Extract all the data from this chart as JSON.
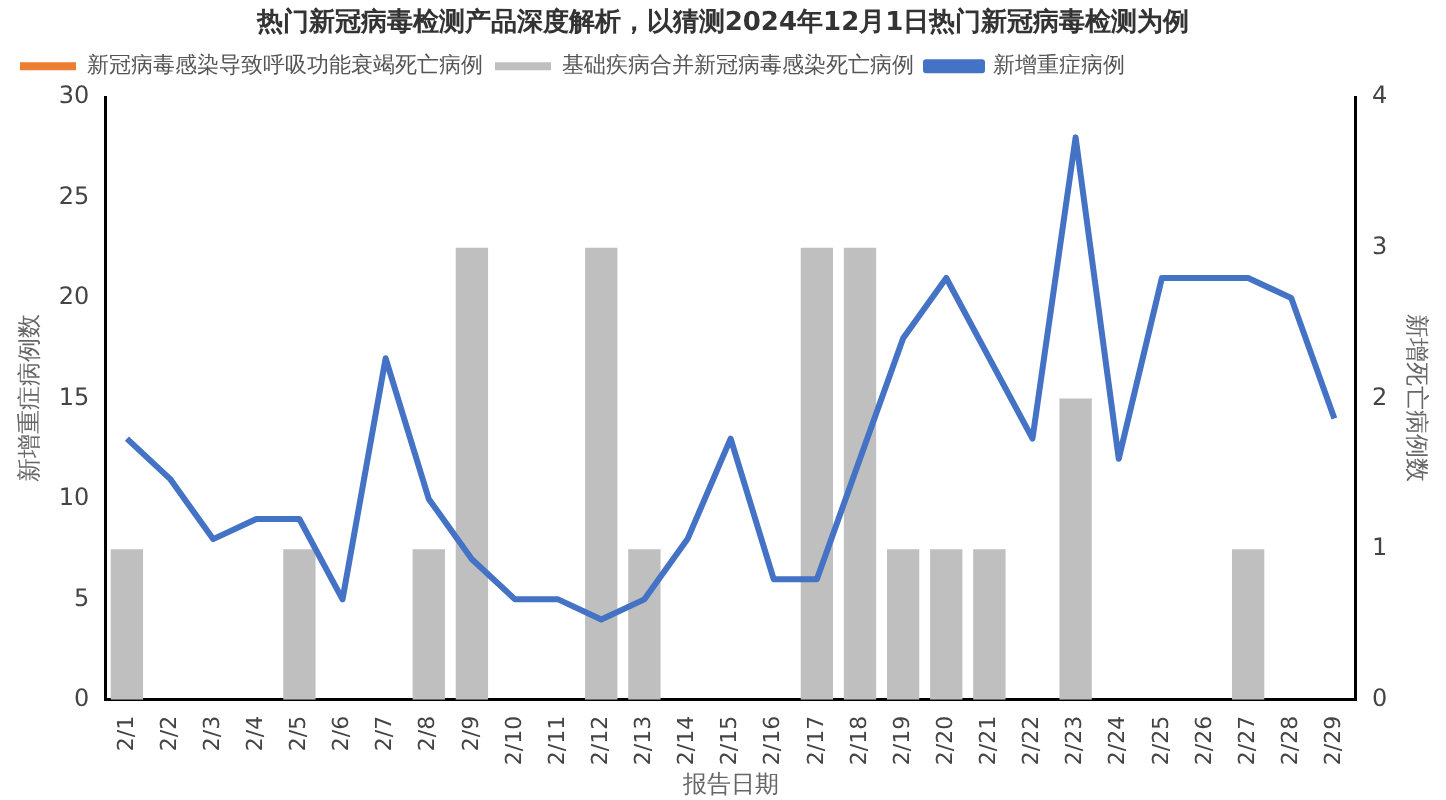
{
  "chart_data": {
    "type": "bar",
    "title": "热门新冠病毒检测产品深度解析，以猜测2024年12月1日热门新冠病毒检测为例",
    "xlabel": "报告日期",
    "ylabel": "新增重症病例数",
    "y2label": "新增死亡病例数",
    "categories": [
      "2/1",
      "2/2",
      "2/3",
      "2/4",
      "2/5",
      "2/6",
      "2/7",
      "2/8",
      "2/9",
      "2/10",
      "2/11",
      "2/12",
      "2/13",
      "2/14",
      "2/15",
      "2/16",
      "2/17",
      "2/18",
      "2/19",
      "2/20",
      "2/21",
      "2/22",
      "2/23",
      "2/24",
      "2/25",
      "2/26",
      "2/27",
      "2/28",
      "2/29"
    ],
    "series": [
      {
        "name": "新冠病毒感染导致呼吸功能衰竭死亡病例",
        "axis": "y2",
        "color": "#ed7d31",
        "values": [
          0,
          0,
          0,
          0,
          0,
          0,
          0,
          0,
          0,
          0,
          0,
          0,
          0,
          0,
          0,
          0,
          0,
          0,
          0,
          0,
          0,
          0,
          0,
          0,
          0,
          0,
          0,
          0,
          0
        ]
      },
      {
        "name": "基础疾病合并新冠病毒感染死亡病例",
        "axis": "y2",
        "color": "#bfbfbf",
        "values": [
          1,
          0,
          0,
          0,
          1,
          0,
          0,
          1,
          3,
          0,
          0,
          3,
          1,
          0,
          0,
          0,
          3,
          3,
          1,
          1,
          1,
          0,
          2,
          0,
          0,
          0,
          1,
          0,
          0
        ]
      },
      {
        "name": "新增重症病例",
        "type": "line",
        "axis": "y",
        "color": "#4472c4",
        "values": [
          13,
          11,
          8,
          9,
          9,
          5,
          17,
          10,
          7,
          5,
          5,
          4,
          5,
          8,
          13,
          6,
          6,
          12,
          18,
          21,
          17,
          13,
          28,
          12,
          21,
          21,
          21,
          20,
          14
        ]
      }
    ],
    "ylim": [
      0,
      30
    ],
    "yticks": [
      0,
      5,
      10,
      15,
      20,
      25,
      30
    ],
    "y2lim": [
      0,
      4
    ],
    "y2ticks": [
      0,
      1,
      2,
      3,
      4
    ],
    "grid": false,
    "legend": "top left",
    "marker": "none",
    "line_style": "solid"
  }
}
